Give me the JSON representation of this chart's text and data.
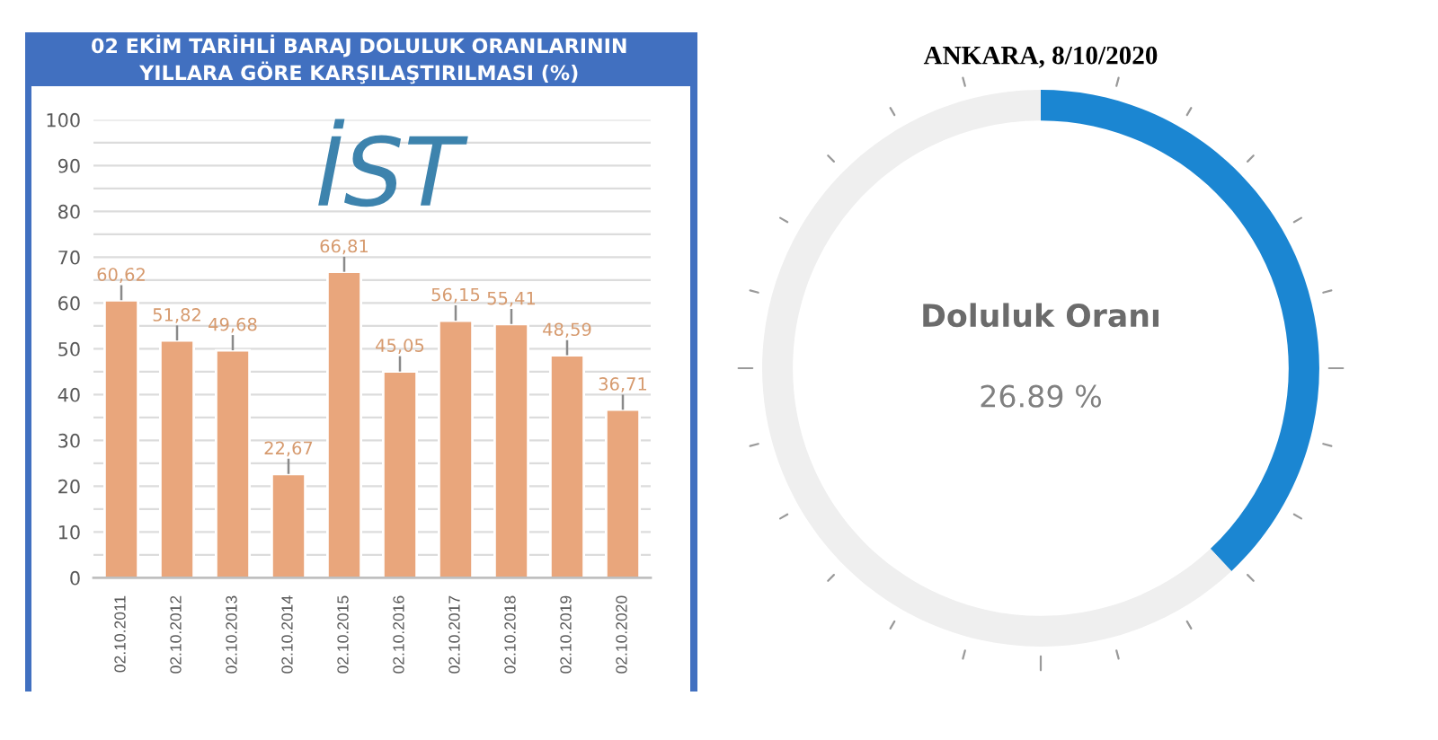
{
  "chart_data": [
    {
      "type": "bar",
      "title": "02 EKİM TARİHLİ BARAJ DOLULUK ORANLARININ\nYILLARA GÖRE KARŞILAŞTIRILMASI (%)",
      "categories": [
        "02.10.2011",
        "02.10.2012",
        "02.10.2013",
        "02.10.2014",
        "02.10.2015",
        "02.10.2016",
        "02.10.2017",
        "02.10.2018",
        "02.10.2019",
        "02.10.2020"
      ],
      "values": [
        60.62,
        51.82,
        49.68,
        22.67,
        66.81,
        45.05,
        56.15,
        55.41,
        48.59,
        36.71
      ],
      "color": "#e9a67c",
      "errors": [
        [
          60.62,
          63.9
        ],
        [
          51.82,
          55.1
        ],
        [
          49.68,
          53
        ],
        [
          22.67,
          26
        ],
        [
          66.81,
          70.1
        ],
        [
          45.05,
          48.4
        ],
        [
          56.15,
          59.5
        ],
        [
          55.41,
          58.7
        ],
        [
          48.59,
          51.9
        ],
        [
          36.71,
          40
        ]
      ],
      "value_labels": [
        "60,62",
        "51,82",
        "49,68",
        "22,67",
        "66,81",
        "45,05",
        "56,15",
        "55,41",
        "48,59",
        "36,71"
      ],
      "ylim": [
        0,
        100
      ],
      "yticks": [
        0,
        {
          "value": 5,
          "label": null
        },
        10,
        {
          "value": 15,
          "label": null
        },
        20,
        {
          "value": 25,
          "label": null
        },
        30,
        {
          "value": 35,
          "label": null
        },
        40,
        {
          "value": 45,
          "label": null
        },
        50,
        {
          "value": 55,
          "label": null
        },
        60,
        {
          "value": 65,
          "label": null
        },
        70,
        {
          "value": 75,
          "label": null
        },
        80,
        {
          "value": 85,
          "label": null
        },
        90,
        {
          "value": 95,
          "label": null
        },
        100
      ],
      "grid": "y",
      "annotations": [
        "İST"
      ]
    },
    {
      "type": "donut",
      "title": "ANKARA, 8/10/2020",
      "categories": [
        null,
        null
      ],
      "values": [
        38,
        62
      ],
      "colors": [
        "#1b86d2",
        "#efefef"
      ],
      "annotations": [
        "Doluluk Oranı",
        "26.89 %"
      ]
    }
  ]
}
